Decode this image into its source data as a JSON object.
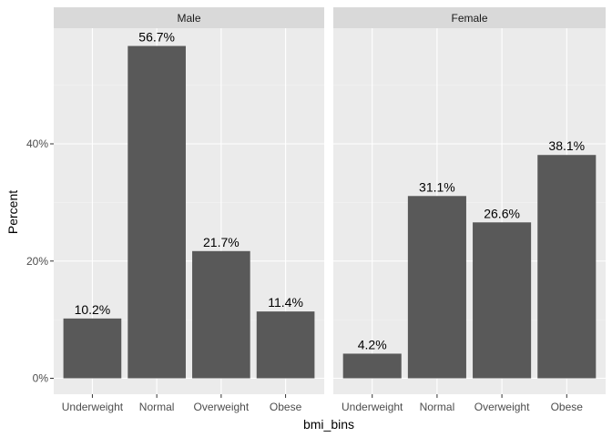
{
  "chart_data": {
    "type": "bar",
    "xlabel": "bmi_bins",
    "ylabel": "Percent",
    "categories": [
      "Underweight",
      "Normal",
      "Overweight",
      "Obese"
    ],
    "ylim": [
      0,
      60
    ],
    "y_ticks": [
      0,
      20,
      40
    ],
    "y_tick_labels": [
      "0%",
      "20%",
      "40%"
    ],
    "grid": true,
    "legend": "none",
    "facets": [
      {
        "name": "Male",
        "values": [
          10.2,
          56.7,
          21.7,
          11.4
        ],
        "labels": [
          "10.2%",
          "56.7%",
          "21.7%",
          "11.4%"
        ]
      },
      {
        "name": "Female",
        "values": [
          4.2,
          31.1,
          26.6,
          38.1
        ],
        "labels": [
          "4.2%",
          "31.1%",
          "26.6%",
          "38.1%"
        ]
      }
    ],
    "colors": {
      "bar": "#595959",
      "panel_bg": "#ebebeb",
      "strip_bg": "#d9d9d9",
      "grid_major": "#ffffff",
      "grid_minor": "#f5f5f5"
    }
  }
}
